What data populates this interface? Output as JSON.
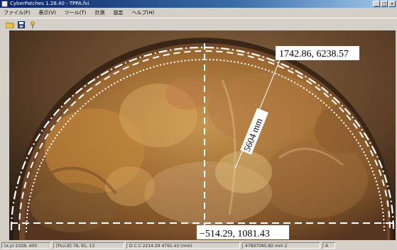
{
  "window": {
    "title": "CyberPatches 1.28.40 - TPPA.fvi",
    "minimize_label": "_",
    "maximize_label": "□",
    "close_label": "x"
  },
  "menu": {
    "items": [
      {
        "label": "ファイル(F)"
      },
      {
        "label": "表示(V)"
      },
      {
        "label": "ツール(T)"
      },
      {
        "label": "計測"
      },
      {
        "label": "設定"
      },
      {
        "label": "ヘルプ(H)"
      }
    ]
  },
  "toolbar": {
    "icons": [
      "open-folder-icon",
      "save-icon",
      "pin-icon"
    ]
  },
  "image": {
    "annotation_top_right": "1742.86, 6238.57",
    "annotation_diagonal": "5604 mm",
    "annotation_bottom": "−514.29, 1081.43"
  },
  "status": {
    "cells": [
      {
        "label": "(x,y) 2328, 400"
      },
      {
        "label": "[PLU.B] 78, 81, 13"
      },
      {
        "label": "D C C    2214.29    4791.43   (mm)"
      },
      {
        "label": "47897095.82   mm 2"
      },
      {
        "label": "A"
      }
    ]
  }
}
